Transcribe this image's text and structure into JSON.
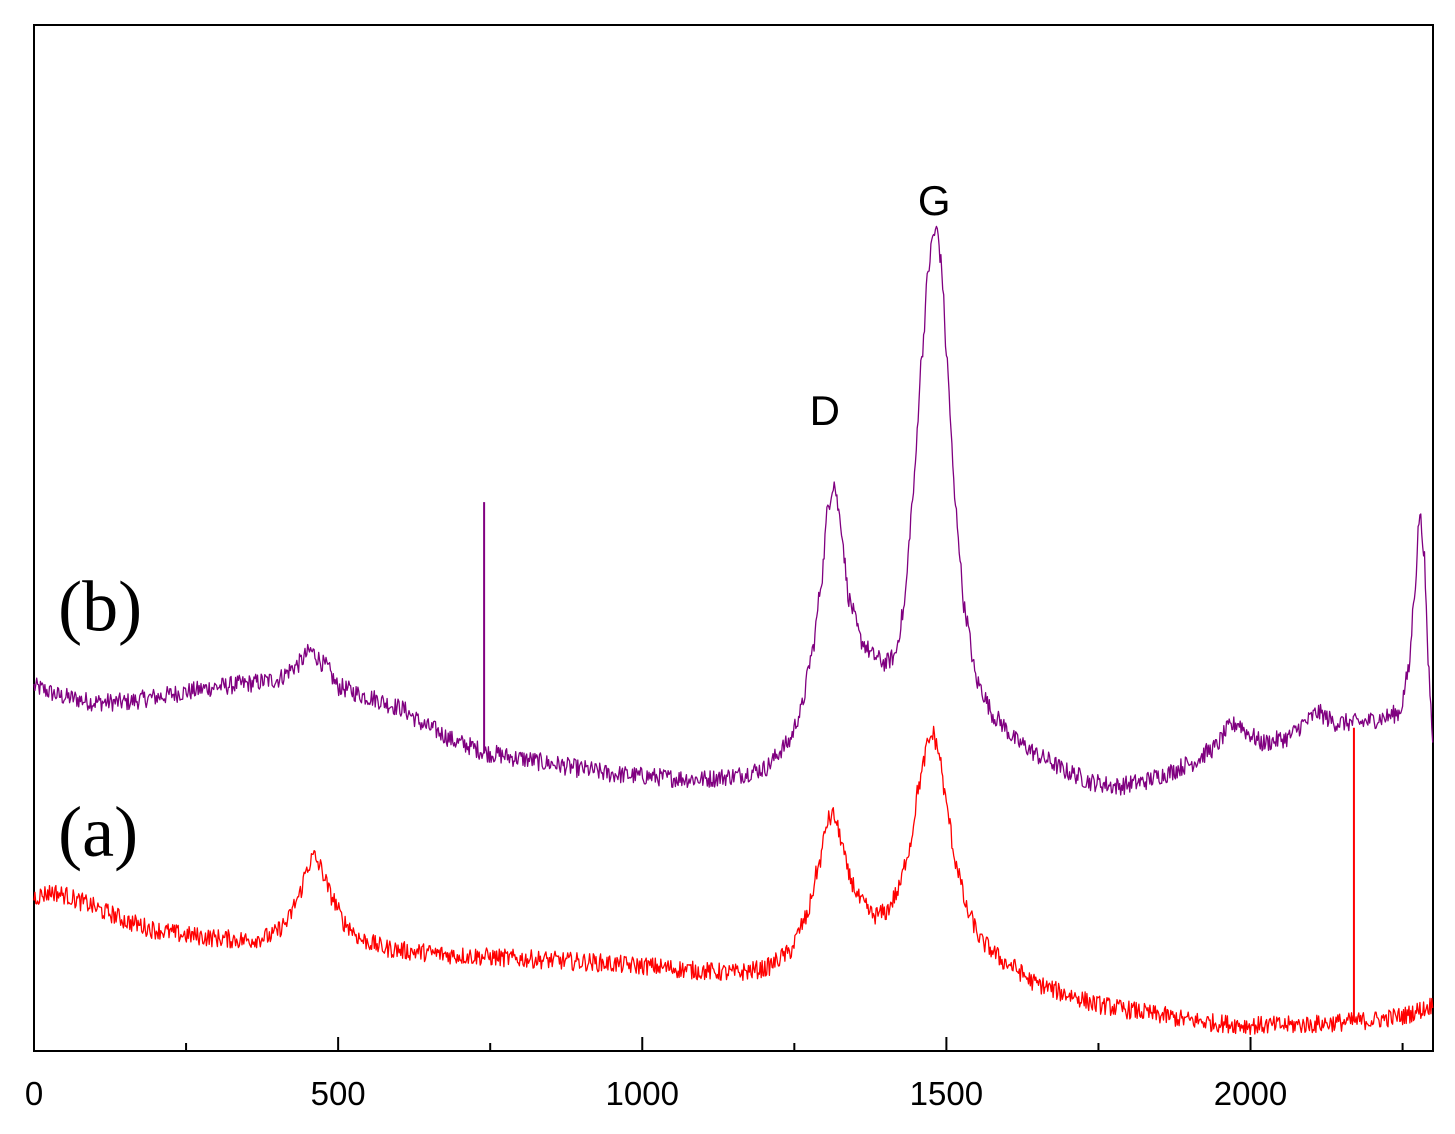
{
  "chart_data": {
    "type": "line",
    "x_ticks_major": [
      0,
      500,
      1000,
      1500,
      2000
    ],
    "x_tick_labels": [
      "0",
      "500",
      "1000",
      "1500",
      "2000"
    ],
    "x_ticks_minor": [
      250,
      750,
      1250,
      1750,
      2250
    ],
    "xlim": [
      0,
      2300
    ],
    "ylim": [
      0,
      1
    ],
    "y_ticks_shown": false,
    "grid": false,
    "annotations": [
      {
        "text": "D",
        "x": 1300,
        "y": 0.61
      },
      {
        "text": "G",
        "x": 1480,
        "y": 0.815
      }
    ],
    "series": [
      {
        "name": "(b)",
        "color": "#800080",
        "label_x": 20,
        "label_y": 0.41,
        "points": [
          [
            0,
            0.355
          ],
          [
            50,
            0.345
          ],
          [
            100,
            0.34
          ],
          [
            150,
            0.34
          ],
          [
            200,
            0.345
          ],
          [
            250,
            0.35
          ],
          [
            300,
            0.355
          ],
          [
            350,
            0.358
          ],
          [
            400,
            0.362
          ],
          [
            430,
            0.375
          ],
          [
            455,
            0.39
          ],
          [
            480,
            0.375
          ],
          [
            500,
            0.355
          ],
          [
            550,
            0.345
          ],
          [
            600,
            0.335
          ],
          [
            650,
            0.315
          ],
          [
            700,
            0.3
          ],
          [
            750,
            0.29
          ],
          [
            800,
            0.285
          ],
          [
            850,
            0.28
          ],
          [
            900,
            0.275
          ],
          [
            950,
            0.27
          ],
          [
            1000,
            0.268
          ],
          [
            1050,
            0.266
          ],
          [
            1100,
            0.265
          ],
          [
            1150,
            0.268
          ],
          [
            1200,
            0.275
          ],
          [
            1240,
            0.3
          ],
          [
            1260,
            0.33
          ],
          [
            1280,
            0.39
          ],
          [
            1295,
            0.46
          ],
          [
            1305,
            0.53
          ],
          [
            1315,
            0.555
          ],
          [
            1325,
            0.52
          ],
          [
            1340,
            0.44
          ],
          [
            1360,
            0.4
          ],
          [
            1380,
            0.385
          ],
          [
            1400,
            0.378
          ],
          [
            1415,
            0.385
          ],
          [
            1430,
            0.43
          ],
          [
            1445,
            0.54
          ],
          [
            1460,
            0.68
          ],
          [
            1470,
            0.76
          ],
          [
            1478,
            0.795
          ],
          [
            1485,
            0.8
          ],
          [
            1492,
            0.765
          ],
          [
            1500,
            0.68
          ],
          [
            1515,
            0.53
          ],
          [
            1530,
            0.43
          ],
          [
            1550,
            0.36
          ],
          [
            1580,
            0.325
          ],
          [
            1620,
            0.3
          ],
          [
            1660,
            0.285
          ],
          [
            1700,
            0.272
          ],
          [
            1740,
            0.262
          ],
          [
            1780,
            0.258
          ],
          [
            1820,
            0.262
          ],
          [
            1860,
            0.27
          ],
          [
            1900,
            0.28
          ],
          [
            1940,
            0.295
          ],
          [
            1965,
            0.315
          ],
          [
            1980,
            0.32
          ],
          [
            1995,
            0.31
          ],
          [
            2020,
            0.3
          ],
          [
            2060,
            0.305
          ],
          [
            2090,
            0.32
          ],
          [
            2110,
            0.33
          ],
          [
            2140,
            0.32
          ],
          [
            2180,
            0.32
          ],
          [
            2220,
            0.325
          ],
          [
            2245,
            0.33
          ],
          [
            2260,
            0.37
          ],
          [
            2270,
            0.45
          ],
          [
            2278,
            0.525
          ],
          [
            2285,
            0.49
          ],
          [
            2292,
            0.38
          ],
          [
            2300,
            0.3
          ]
        ],
        "spike": {
          "x": 740,
          "y_from": 0.29,
          "y_to": 0.535
        }
      },
      {
        "name": "(a)",
        "color": "#ff0000",
        "label_x": 20,
        "label_y": 0.19,
        "points": [
          [
            0,
            0.15
          ],
          [
            30,
            0.155
          ],
          [
            50,
            0.152
          ],
          [
            80,
            0.145
          ],
          [
            120,
            0.135
          ],
          [
            160,
            0.125
          ],
          [
            200,
            0.118
          ],
          [
            250,
            0.113
          ],
          [
            300,
            0.11
          ],
          [
            350,
            0.108
          ],
          [
            390,
            0.112
          ],
          [
            415,
            0.125
          ],
          [
            435,
            0.15
          ],
          [
            450,
            0.18
          ],
          [
            460,
            0.19
          ],
          [
            470,
            0.18
          ],
          [
            490,
            0.15
          ],
          [
            510,
            0.125
          ],
          [
            540,
            0.108
          ],
          [
            580,
            0.1
          ],
          [
            620,
            0.097
          ],
          [
            700,
            0.093
          ],
          [
            800,
            0.09
          ],
          [
            900,
            0.087
          ],
          [
            1000,
            0.083
          ],
          [
            1100,
            0.078
          ],
          [
            1150,
            0.076
          ],
          [
            1200,
            0.08
          ],
          [
            1240,
            0.095
          ],
          [
            1270,
            0.13
          ],
          [
            1290,
            0.18
          ],
          [
            1305,
            0.225
          ],
          [
            1315,
            0.23
          ],
          [
            1325,
            0.21
          ],
          [
            1340,
            0.17
          ],
          [
            1360,
            0.145
          ],
          [
            1380,
            0.132
          ],
          [
            1400,
            0.135
          ],
          [
            1420,
            0.155
          ],
          [
            1440,
            0.2
          ],
          [
            1455,
            0.26
          ],
          [
            1470,
            0.3
          ],
          [
            1478,
            0.31
          ],
          [
            1488,
            0.29
          ],
          [
            1500,
            0.24
          ],
          [
            1515,
            0.185
          ],
          [
            1535,
            0.135
          ],
          [
            1560,
            0.105
          ],
          [
            1600,
            0.085
          ],
          [
            1650,
            0.065
          ],
          [
            1700,
            0.055
          ],
          [
            1750,
            0.045
          ],
          [
            1800,
            0.04
          ],
          [
            1850,
            0.035
          ],
          [
            1900,
            0.03
          ],
          [
            1950,
            0.027
          ],
          [
            2000,
            0.025
          ],
          [
            2050,
            0.025
          ],
          [
            2100,
            0.026
          ],
          [
            2150,
            0.028
          ],
          [
            2200,
            0.03
          ],
          [
            2250,
            0.034
          ],
          [
            2280,
            0.04
          ],
          [
            2300,
            0.045
          ]
        ],
        "spike": {
          "x": 2170,
          "y_from": 0.03,
          "y_to": 0.315
        }
      }
    ]
  }
}
